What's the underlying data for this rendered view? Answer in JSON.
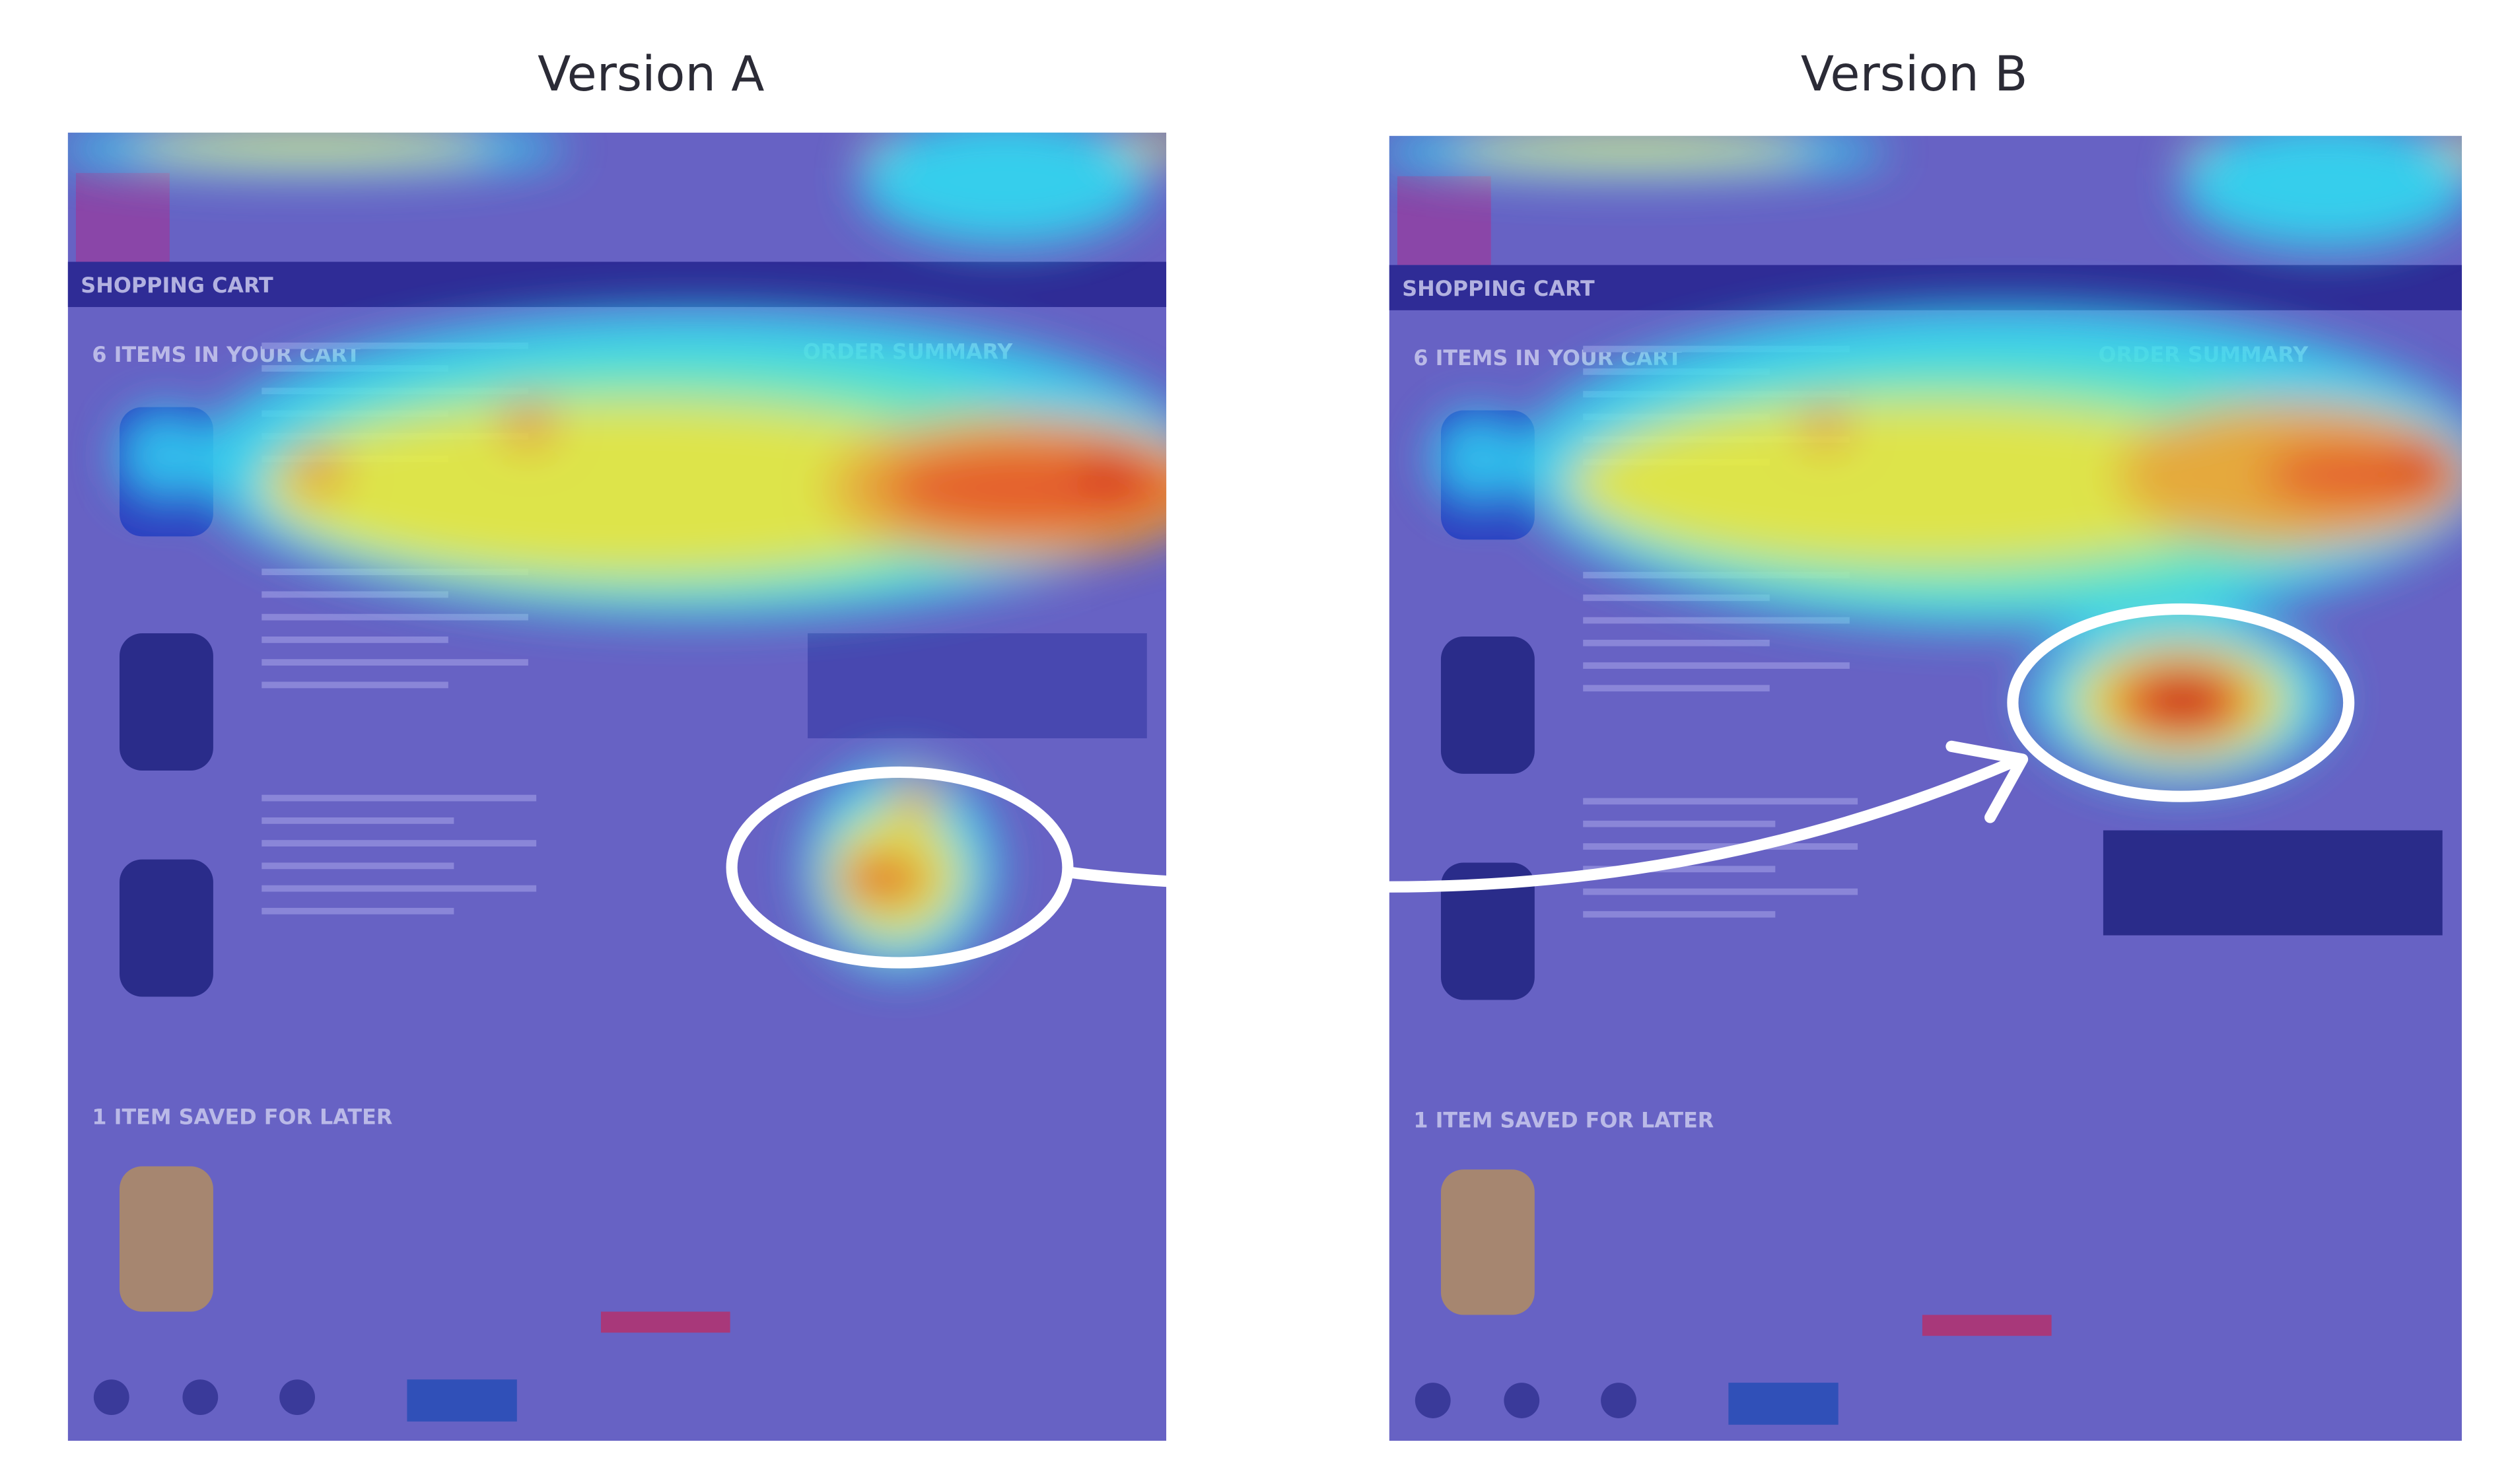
{
  "titles": [
    "Version A",
    "Version B"
  ],
  "panels": [
    {
      "header": "SHOPPING CART",
      "cart_heading": "6 ITEMS IN YOUR CART",
      "summary_heading": "ORDER SUMMARY",
      "saved_heading": "1 ITEM SAVED FOR LATER"
    },
    {
      "header": "SHOPPING CART",
      "cart_heading": "6 ITEMS IN YOUR CART",
      "summary_heading": "ORDER SUMMARY",
      "saved_heading": "1 ITEM SAVED FOR LATER"
    }
  ]
}
